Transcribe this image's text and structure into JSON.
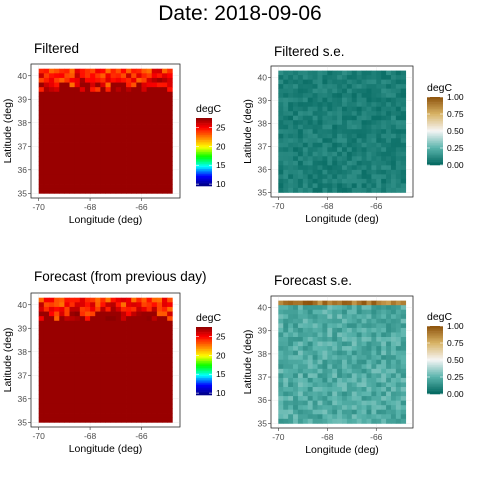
{
  "title": "Date: 2018-09-06",
  "chart_data": [
    {
      "type": "heatmap",
      "title": "Filtered",
      "xlabel": "Longitude (deg)",
      "ylabel": "Latitude (deg)",
      "xlim": [
        -70.3,
        -64.5
      ],
      "ylim": [
        34.8,
        40.5
      ],
      "x_ticks": [
        "-70",
        "-68",
        "-66"
      ],
      "y_ticks": [
        "35",
        "36",
        "37",
        "38",
        "39",
        "40"
      ],
      "legend": {
        "title": "degC",
        "colormap": "rainbow",
        "ticks": [
          "10",
          "15",
          "20",
          "25"
        ],
        "min": 9.5,
        "max": 27.5
      },
      "field": {
        "bulk_value": 27.2,
        "north_edge_warm_band_values": [
          21,
          26
        ],
        "grid": "on"
      },
      "colors": [
        "#00007f",
        "#0000ff",
        "#00ffff",
        "#00ff00",
        "#ffff00",
        "#ff7f00",
        "#ff0000",
        "#8b0000"
      ]
    },
    {
      "type": "heatmap",
      "title": "Filtered s.e.",
      "xlabel": "Longitude (deg)",
      "ylabel": "Latitude (deg)",
      "xlim": [
        -70.3,
        -64.5
      ],
      "ylim": [
        34.8,
        40.5
      ],
      "x_ticks": [
        "-70",
        "-68",
        "-66"
      ],
      "y_ticks": [
        "35",
        "36",
        "37",
        "38",
        "39",
        "40"
      ],
      "legend": {
        "title": "degC",
        "colormap": "brown-teal",
        "ticks": [
          "0.00",
          "0.25",
          "0.50",
          "0.75",
          "1.00"
        ],
        "min": 0,
        "max": 1
      },
      "field": {
        "bulk_value": 0.08,
        "grid": "on"
      },
      "colors": [
        "#01665e",
        "#5ab4ac",
        "#f5f5f5",
        "#d8b365",
        "#8c510a"
      ]
    },
    {
      "type": "heatmap",
      "title": "Forecast (from previous day)",
      "xlabel": "Longitude (deg)",
      "ylabel": "Latitude (deg)",
      "xlim": [
        -70.3,
        -64.5
      ],
      "ylim": [
        34.8,
        40.5
      ],
      "x_ticks": [
        "-70",
        "-68",
        "-66"
      ],
      "y_ticks": [
        "35",
        "36",
        "37",
        "38",
        "39",
        "40"
      ],
      "legend": {
        "title": "degC",
        "colormap": "rainbow",
        "ticks": [
          "10",
          "15",
          "20",
          "25"
        ],
        "min": 9.5,
        "max": 27.5
      },
      "field": {
        "bulk_value": 27.2,
        "north_edge_warm_band_values": [
          21,
          26
        ],
        "grid": "on"
      },
      "colors": [
        "#00007f",
        "#0000ff",
        "#00ffff",
        "#00ff00",
        "#ffff00",
        "#ff7f00",
        "#ff0000",
        "#8b0000"
      ]
    },
    {
      "type": "heatmap",
      "title": "Forecast s.e.",
      "xlabel": "Longitude (deg)",
      "ylabel": "Latitude (deg)",
      "xlim": [
        -70.3,
        -64.5
      ],
      "ylim": [
        34.8,
        40.5
      ],
      "x_ticks": [
        "-70",
        "-68",
        "-66"
      ],
      "y_ticks": [
        "35",
        "36",
        "37",
        "38",
        "39",
        "40"
      ],
      "legend": {
        "title": "degC",
        "colormap": "brown-teal",
        "ticks": [
          "0.00",
          "0.25",
          "0.50",
          "0.75",
          "1.00"
        ],
        "min": 0,
        "max": 1
      },
      "field": {
        "bulk_value": 0.22,
        "north_edge_value": 1.0,
        "grid": "on"
      },
      "colors": [
        "#01665e",
        "#5ab4ac",
        "#f5f5f5",
        "#d8b365",
        "#8c510a"
      ]
    }
  ]
}
